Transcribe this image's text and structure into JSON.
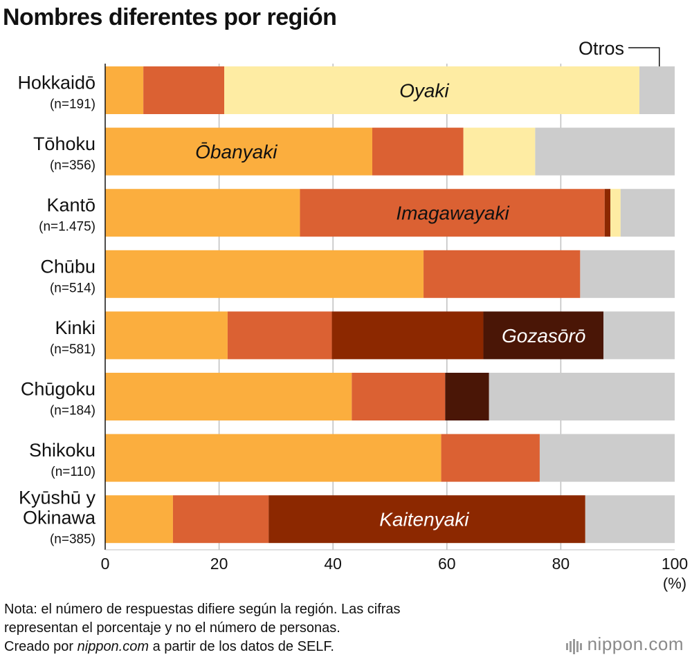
{
  "chart_data": {
    "type": "bar",
    "orientation": "horizontal",
    "stacked": true,
    "title": "Nombres diferentes por región",
    "xlim": [
      0,
      100
    ],
    "xticks": [
      0,
      20,
      40,
      60,
      80,
      100
    ],
    "xunit": "(%)",
    "others_label": "Otros",
    "categories": [
      {
        "name": "Hokkaidō",
        "n": "(n=191)"
      },
      {
        "name": "Tōhoku",
        "n": "(n=356)"
      },
      {
        "name": "Kantō",
        "n": "(n=1.475)"
      },
      {
        "name": "Chūbu",
        "n": "(n=514)"
      },
      {
        "name": "Kinki",
        "n": "(n=581)"
      },
      {
        "name": "Chūgoku",
        "n": "(n=184)"
      },
      {
        "name": "Shikoku",
        "n": "(n=110)"
      },
      {
        "name": "Kyūshū y Okinawa",
        "n": "(n=385)"
      }
    ],
    "series": [
      {
        "name": "Ōbanyaki",
        "color": "#FBAE3E",
        "values": [
          6.7,
          46.9,
          34.2,
          55.9,
          21.5,
          43.3,
          59.0,
          11.9
        ]
      },
      {
        "name": "Imagawayaki",
        "color": "#DB6133",
        "values": [
          14.2,
          16.0,
          53.5,
          27.5,
          18.3,
          16.4,
          17.3,
          16.8
        ]
      },
      {
        "name": "Kaitenyaki",
        "color": "#8C2800",
        "values": [
          0,
          0,
          1.0,
          0,
          26.6,
          0,
          0,
          55.6
        ]
      },
      {
        "name": "Gozasōrō",
        "color": "#4A1606",
        "values": [
          0,
          0,
          0,
          0,
          21.1,
          7.7,
          0,
          0
        ]
      },
      {
        "name": "Oyaki",
        "color": "#FEECA3",
        "values": [
          72.9,
          12.6,
          1.8,
          0,
          0,
          0,
          0,
          0
        ]
      },
      {
        "name": "Otros",
        "color": "#CCCCCC",
        "values": [
          6.2,
          24.5,
          9.5,
          16.6,
          12.5,
          32.6,
          23.7,
          15.7
        ]
      }
    ],
    "annotations": [
      {
        "text": "Oyaki",
        "row": 0,
        "at": 56,
        "style": "dark"
      },
      {
        "text": "Ōbanyaki",
        "row": 1,
        "at": 23,
        "style": "dark"
      },
      {
        "text": "Imagawayaki",
        "row": 2,
        "at": 61,
        "style": "dark"
      },
      {
        "text": "Gozasōrō",
        "row": 4,
        "at": 77,
        "style": "light"
      },
      {
        "text": "Kaitenyaki",
        "row": 7,
        "at": 56,
        "style": "light"
      }
    ]
  },
  "footer": {
    "note_line1": "Nota: el número de respuestas difiere según la región. Las cifras",
    "note_line2": "representan el porcentaje y no el número de personas.",
    "credit_prefix": "Creado por ",
    "credit_source": "nippon.com",
    "credit_suffix": " a partir de los datos de SELF.",
    "brand": "nippon.com"
  }
}
